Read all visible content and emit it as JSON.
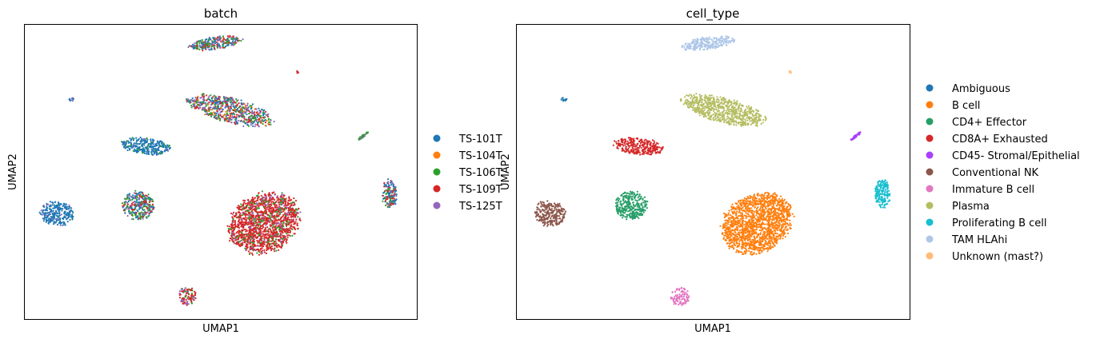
{
  "chart_data": [
    {
      "type": "scatter",
      "title": "batch",
      "xlabel": "UMAP1",
      "ylabel": "UMAP2",
      "grid": false,
      "legend_placement": "right",
      "legend": [
        {
          "name": "TS-101T",
          "color": "#1f77b4"
        },
        {
          "name": "TS-104T",
          "color": "#ff7f0e"
        },
        {
          "name": "TS-106T",
          "color": "#2ca02c"
        },
        {
          "name": "TS-109T",
          "color": "#d62728"
        },
        {
          "name": "TS-125T",
          "color": "#9467bd"
        }
      ],
      "clusters": [
        {
          "cell_type": "TAM HLAhi",
          "batch_mix": [
            [
              "#1f77b4",
              0.25
            ],
            [
              "#2ca02c",
              0.3
            ],
            [
              "#d62728",
              0.3
            ],
            [
              "#9467bd",
              0.15
            ]
          ]
        },
        {
          "cell_type": "Unknown (mast?)",
          "batch_mix": [
            [
              "#d62728",
              0.6
            ],
            [
              "#ff7f0e",
              0.4
            ]
          ]
        },
        {
          "cell_type": "Plasma",
          "batch_mix": [
            [
              "#1f77b4",
              0.2
            ],
            [
              "#2ca02c",
              0.25
            ],
            [
              "#d62728",
              0.2
            ],
            [
              "#9467bd",
              0.25
            ],
            [
              "#ff7f0e",
              0.1
            ]
          ]
        },
        {
          "cell_type": "Ambiguous",
          "batch_mix": [
            [
              "#1f77b4",
              0.8
            ],
            [
              "#9467bd",
              0.2
            ]
          ]
        },
        {
          "cell_type": "CD8A+ Exhausted",
          "batch_mix": [
            [
              "#1f77b4",
              0.85
            ],
            [
              "#2ca02c",
              0.1
            ],
            [
              "#9467bd",
              0.05
            ]
          ]
        },
        {
          "cell_type": "CD45- Stromal/Epithelial",
          "batch_mix": [
            [
              "#2ca02c",
              0.7
            ],
            [
              "#9467bd",
              0.3
            ]
          ]
        },
        {
          "cell_type": "Conventional NK",
          "batch_mix": [
            [
              "#1f77b4",
              0.92
            ],
            [
              "#9467bd",
              0.08
            ]
          ]
        },
        {
          "cell_type": "CD4+ Effector",
          "batch_mix": [
            [
              "#1f77b4",
              0.3
            ],
            [
              "#2ca02c",
              0.3
            ],
            [
              "#d62728",
              0.25
            ],
            [
              "#9467bd",
              0.15
            ]
          ]
        },
        {
          "cell_type": "B cell",
          "batch_mix": [
            [
              "#d62728",
              0.75
            ],
            [
              "#2ca02c",
              0.15
            ],
            [
              "#9467bd",
              0.1
            ]
          ]
        },
        {
          "cell_type": "Proliferating B cell",
          "batch_mix": [
            [
              "#1f77b4",
              0.35
            ],
            [
              "#2ca02c",
              0.25
            ],
            [
              "#d62728",
              0.2
            ],
            [
              "#9467bd",
              0.2
            ]
          ]
        },
        {
          "cell_type": "Immature B cell",
          "batch_mix": [
            [
              "#d62728",
              0.5
            ],
            [
              "#2ca02c",
              0.2
            ],
            [
              "#9467bd",
              0.3
            ]
          ]
        }
      ]
    },
    {
      "type": "scatter",
      "title": "cell_type",
      "xlabel": "UMAP1",
      "ylabel": "UMAP2",
      "grid": false,
      "legend_placement": "right",
      "legend": [
        {
          "name": "Ambiguous",
          "color": "#1f77b4"
        },
        {
          "name": "B cell",
          "color": "#ff7f0e"
        },
        {
          "name": "CD4+ Effector",
          "color": "#279e68"
        },
        {
          "name": "CD8A+ Exhausted",
          "color": "#d62728"
        },
        {
          "name": "CD45- Stromal/Epithelial",
          "color": "#aa40fc"
        },
        {
          "name": "Conventional NK",
          "color": "#8c564b"
        },
        {
          "name": "Immature B cell",
          "color": "#e377c2"
        },
        {
          "name": "Plasma",
          "color": "#b5bd61"
        },
        {
          "name": "Proliferating B cell",
          "color": "#17becf"
        },
        {
          "name": "TAM HLAhi",
          "color": "#aec7e8"
        },
        {
          "name": "Unknown (mast?)",
          "color": "#ffbb78"
        }
      ]
    }
  ]
}
